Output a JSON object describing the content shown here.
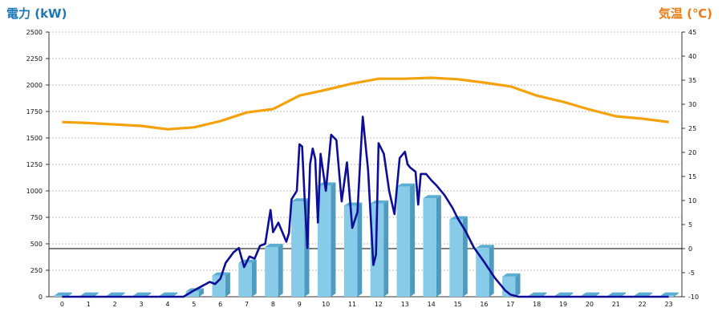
{
  "chart_data": {
    "type": "bar",
    "ylabel_left": "電力 (kW)",
    "ylabel_right": "気温 (℃)",
    "categories": [
      "0",
      "1",
      "2",
      "3",
      "4",
      "5",
      "6",
      "7",
      "8",
      "9",
      "10",
      "11",
      "12",
      "13",
      "14",
      "15",
      "16",
      "17",
      "18",
      "19",
      "20",
      "21",
      "22",
      "23"
    ],
    "y_left_range": [
      0,
      2500
    ],
    "y_left_ticks": [
      "0",
      "250",
      "500",
      "750",
      "1000",
      "1250",
      "1500",
      "1750",
      "2000",
      "2250",
      "2500"
    ],
    "y_right_range": [
      -10,
      45
    ],
    "y_right_ticks": [
      "-10",
      "-5",
      "0",
      "5",
      "10",
      "15",
      "20",
      "25",
      "30",
      "35",
      "40",
      "45"
    ],
    "grid": true,
    "series": [
      {
        "kind": "bar",
        "axis": "left",
        "values": [
          10,
          10,
          10,
          10,
          10,
          50,
          200,
          320,
          470,
          900,
          1050,
          860,
          880,
          1040,
          930,
          730,
          460,
          190,
          10,
          10,
          10,
          10,
          10,
          10
        ]
      },
      {
        "kind": "line",
        "axis": "left",
        "x": [
          0,
          4.6,
          5.0,
          5.3,
          5.6,
          5.8,
          6.0,
          6.2,
          6.5,
          6.7,
          6.9,
          7.1,
          7.3,
          7.5,
          7.7,
          7.9,
          8.0,
          8.2,
          8.5,
          8.6,
          8.7,
          8.9,
          9.0,
          9.1,
          9.2,
          9.3,
          9.4,
          9.5,
          9.6,
          9.7,
          9.8,
          10.0,
          10.2,
          10.4,
          10.6,
          10.8,
          11.0,
          11.2,
          11.3,
          11.4,
          11.5,
          11.6,
          11.8,
          11.9,
          12.0,
          12.2,
          12.4,
          12.6,
          12.8,
          13.0,
          13.1,
          13.2,
          13.4,
          13.5,
          13.6,
          13.8,
          14.0,
          14.2,
          14.5,
          14.8,
          15.0,
          15.3,
          15.6,
          16.0,
          16.4,
          16.8,
          17.0,
          17.3,
          17.7,
          18.0,
          23.0
        ],
        "values": [
          0,
          0,
          60,
          100,
          140,
          120,
          170,
          320,
          420,
          460,
          280,
          380,
          360,
          480,
          500,
          820,
          610,
          700,
          520,
          600,
          920,
          1000,
          1440,
          1420,
          900,
          460,
          1250,
          1400,
          1300,
          700,
          1350,
          1000,
          1530,
          1480,
          900,
          1270,
          650,
          800,
          1270,
          1700,
          1450,
          1200,
          300,
          400,
          1450,
          1350,
          1000,
          780,
          1310,
          1370,
          1250,
          1220,
          1180,
          870,
          1160,
          1160,
          1100,
          1050,
          960,
          840,
          740,
          620,
          470,
          330,
          180,
          60,
          20,
          0,
          0,
          0,
          0
        ]
      },
      {
        "kind": "line",
        "axis": "right",
        "values": [
          26.3,
          26.1,
          25.8,
          25.5,
          24.8,
          25.2,
          26.5,
          28.3,
          29.0,
          31.8,
          33.0,
          34.3,
          35.3,
          35.3,
          35.5,
          35.2,
          34.5,
          33.7,
          31.8,
          30.5,
          28.9,
          27.5,
          27.0,
          26.3
        ]
      }
    ],
    "colors": {
      "bar": "#87cbe9",
      "bar_side": "#4d9bbf",
      "bar_top": "#5aaed2",
      "power_line": "#0d0d9a",
      "temp_line": "#f5a20a",
      "left_title": "#1b78b8",
      "right_title": "#f07a14"
    }
  }
}
